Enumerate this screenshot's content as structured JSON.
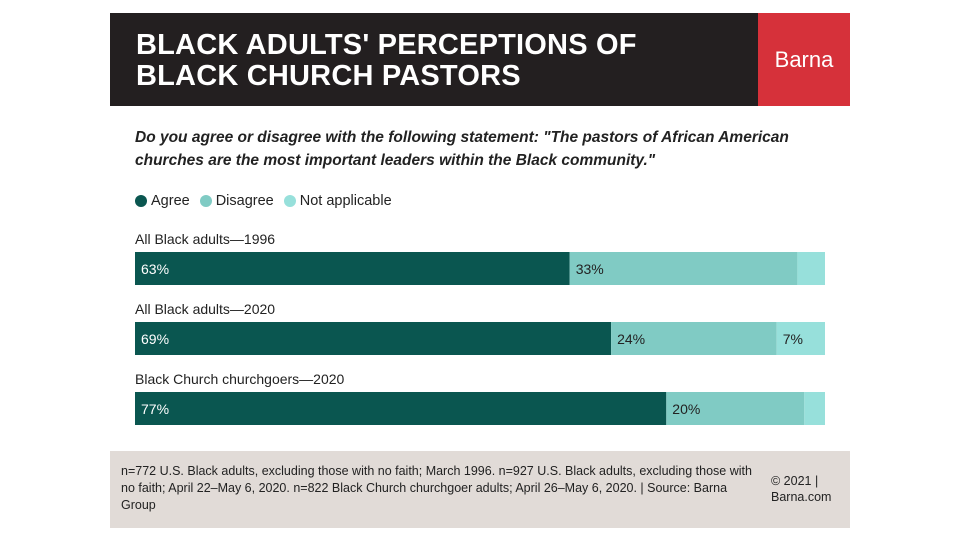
{
  "header": {
    "title": "BLACK ADULTS' PERCEPTIONS OF BLACK CHURCH PASTORS",
    "brand": "Barna"
  },
  "question": "Do you agree or disagree with the following statement: \"The pastors of African American churches are the most important leaders within the Black community.\"",
  "legend": [
    {
      "label": "Agree",
      "color": "#0a5650"
    },
    {
      "label": "Disagree",
      "color": "#80cbc4"
    },
    {
      "label": "Not applicable",
      "color": "#97e0db"
    }
  ],
  "chart_data": {
    "type": "bar",
    "orientation": "horizontal",
    "stacked": true,
    "unit": "%",
    "categories": [
      "All Black adults—1996",
      "All Black adults—2020",
      "Black Church churchgoers—2020"
    ],
    "series": [
      {
        "name": "Agree",
        "values": [
          63,
          69,
          77
        ],
        "labels": [
          "63%",
          "69%",
          "77%"
        ],
        "color": "#0a5650"
      },
      {
        "name": "Disagree",
        "values": [
          33,
          24,
          20
        ],
        "labels": [
          "33%",
          "24%",
          "20%"
        ],
        "color": "#80cbc4"
      },
      {
        "name": "Not applicable",
        "values": [
          4,
          7,
          3
        ],
        "labels": [
          "",
          "7%",
          ""
        ],
        "color": "#97e0db"
      }
    ],
    "xlim": [
      0,
      100
    ],
    "grid": false,
    "legend_position": "top-left"
  },
  "footer": {
    "note": "n=772 U.S. Black adults, excluding those with no faith; March 1996. n=927 U.S. Black adults, excluding those with no faith; April 22–May 6, 2020. n=822 Black Church churchgoer adults; April 26–May 6, 2020. | Source: Barna Group",
    "copyright": "© 2021 | Barna.com"
  }
}
